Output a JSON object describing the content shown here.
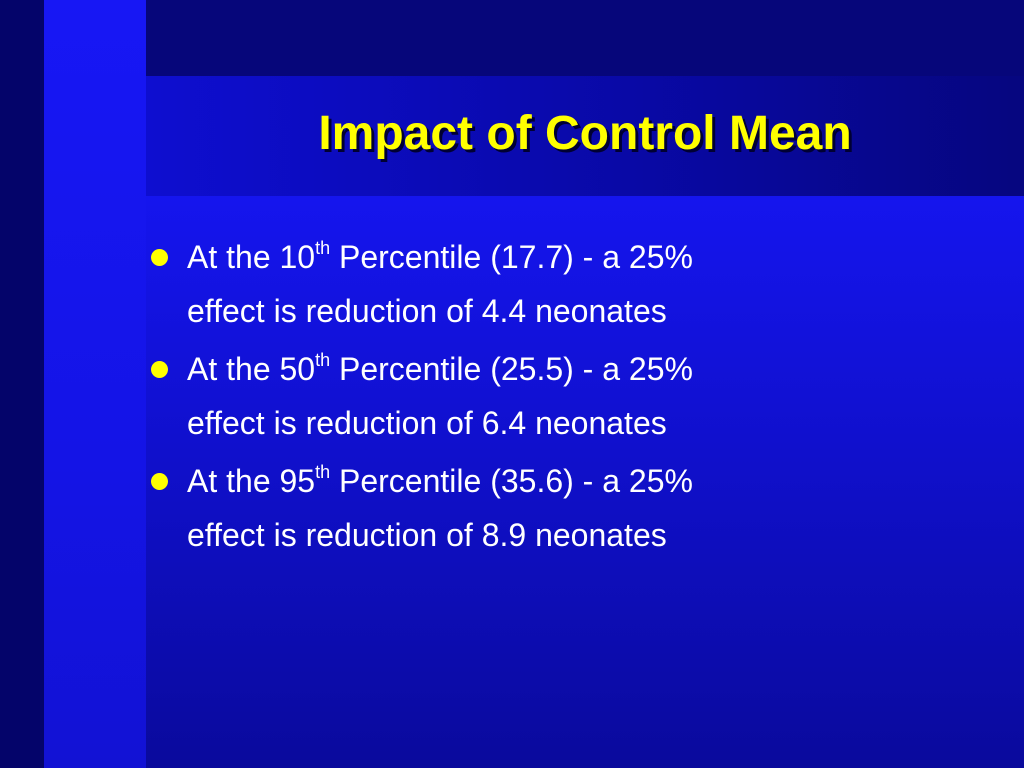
{
  "slide": {
    "title": "Impact of Control Mean",
    "bullets": [
      {
        "pre": "At the 10",
        "sup": "th",
        "post": " Percentile (17.7) - a 25%",
        "line2": "effect is reduction of 4.4 neonates"
      },
      {
        "pre": "At the 50",
        "sup": "th",
        "post": " Percentile (25.5) - a 25%",
        "line2": "effect is reduction of 6.4 neonates"
      },
      {
        "pre": "At the 95",
        "sup": "th",
        "post": " Percentile (35.6) - a 25%",
        "line2": "effect is reduction of 8.9 neonates"
      }
    ]
  },
  "colors": {
    "title": "#ffff00",
    "bullet_marker": "#ffff00",
    "body_text": "#ffffff",
    "background": "#06067a",
    "accent_blue": "#1717f5"
  },
  "icons": {
    "bullet_marker": "filled-circle-bullet"
  }
}
